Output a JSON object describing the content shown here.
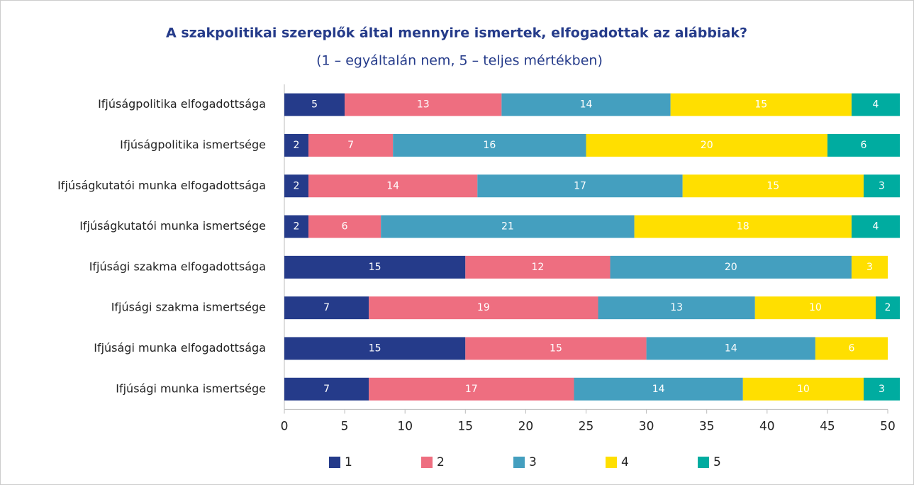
{
  "chart_data": {
    "type": "stacked-barh",
    "title": "A szakpolitikai szereplők által mennyire ismertek, elfogadottak az alábbiak?",
    "subtitle": "(1 – egyáltalán nem, 5 – teljes mértékben)",
    "categories": [
      "Ifjúságpolitika elfogadottsága",
      "Ifjúságpolitika ismertsége",
      "Ifjúságkutatói munka elfogadottsága",
      "Ifjúságkutatói munka ismertsége",
      "Ifjúsági szakma elfogadottsága",
      "Ifjúsági szakma ismertsége",
      "Ifjúsági munka elfogadottsága",
      "Ifjúsági munka ismertsége"
    ],
    "series": [
      {
        "name": "1",
        "color": "#253b8a",
        "values": [
          5,
          2,
          2,
          2,
          15,
          7,
          15,
          7
        ]
      },
      {
        "name": "2",
        "color": "#ee6e80",
        "values": [
          13,
          7,
          14,
          6,
          12,
          19,
          15,
          17
        ]
      },
      {
        "name": "3",
        "color": "#449fbf",
        "values": [
          14,
          16,
          17,
          21,
          20,
          13,
          14,
          14
        ]
      },
      {
        "name": "4",
        "color": "#ffdf00",
        "values": [
          15,
          20,
          15,
          18,
          3,
          10,
          6,
          10
        ]
      },
      {
        "name": "5",
        "color": "#00aca0",
        "values": [
          4,
          6,
          3,
          4,
          null,
          2,
          null,
          3
        ]
      }
    ],
    "xlim": [
      0,
      50
    ],
    "xticks": [
      0,
      5,
      10,
      15,
      20,
      25,
      30,
      35,
      40,
      45,
      50
    ],
    "legend": "bottom"
  }
}
